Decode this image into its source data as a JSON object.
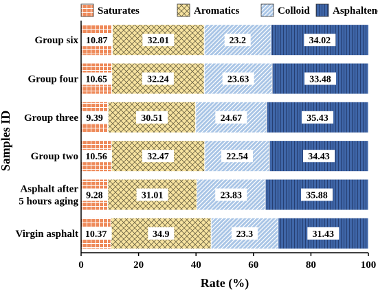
{
  "chart_data": {
    "type": "bar",
    "orientation": "horizontal",
    "stacked": true,
    "title": "",
    "xlabel": "Rate (%)",
    "ylabel": "Samples ID",
    "xlim": [
      0,
      100
    ],
    "xticks": [
      0,
      20,
      40,
      60,
      80,
      100
    ],
    "legend_position": "top",
    "categories": [
      "Group six",
      "Group four",
      "Group three",
      "Group two",
      [
        "Asphalt after",
        "5 hours aging"
      ],
      "Virgin asphalt"
    ],
    "series": [
      {
        "name": "Saturates",
        "color": "#ee8a5a",
        "pattern": "grid",
        "values": [
          10.87,
          10.65,
          9.39,
          10.56,
          9.28,
          10.37
        ]
      },
      {
        "name": "Aromatics",
        "color": "#f7e3a0",
        "pattern": "crosshatch",
        "values": [
          32.01,
          32.24,
          30.51,
          32.47,
          31.01,
          34.9
        ]
      },
      {
        "name": "Colloid",
        "color": "#a9c5e6",
        "pattern": "diagonal",
        "values": [
          23.2,
          23.63,
          24.67,
          22.54,
          23.83,
          23.3
        ]
      },
      {
        "name": "Asphaltenes",
        "color": "#3f66a8",
        "pattern": "vertical",
        "values": [
          34.02,
          33.48,
          35.43,
          34.43,
          35.88,
          31.43
        ]
      }
    ]
  }
}
